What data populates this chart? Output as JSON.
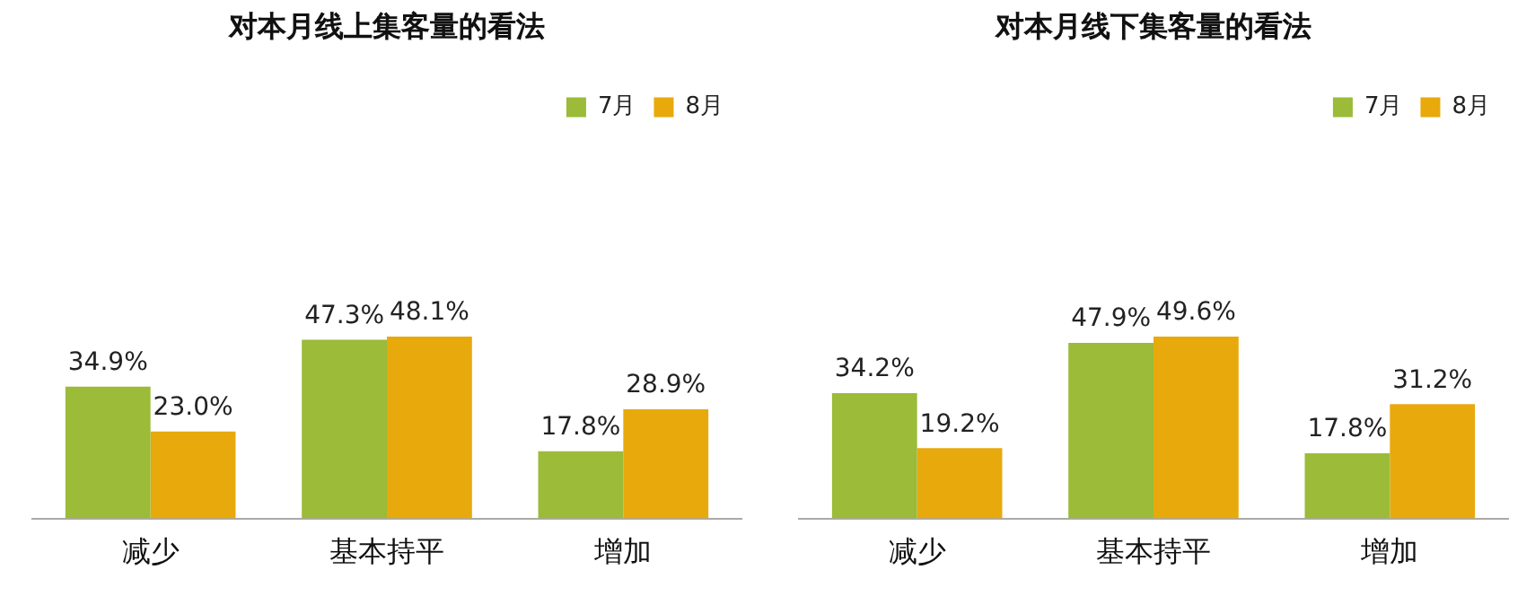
{
  "chart_data": [
    {
      "type": "bar",
      "title": "对本月线上集客量的看法",
      "categories": [
        "减少",
        "基本持平",
        "增加"
      ],
      "legend": "top right",
      "grid": false,
      "series": [
        {
          "name": "7月",
          "color": "#9bbb39",
          "values": [
            34.9,
            47.3,
            17.8
          ],
          "value_labels": [
            "34.9%",
            "47.3%",
            "17.8%"
          ]
        },
        {
          "name": "8月",
          "color": "#e8a90c",
          "values": [
            23.0,
            48.1,
            28.9
          ],
          "value_labels": [
            "23.0%",
            "48.1%",
            "28.9%"
          ]
        }
      ]
    },
    {
      "type": "bar",
      "title": "对本月线下集客量的看法",
      "categories": [
        "减少",
        "基本持平",
        "增加"
      ],
      "legend": "top right",
      "grid": false,
      "series": [
        {
          "name": "7月",
          "color": "#9bbb39",
          "values": [
            34.2,
            47.9,
            17.8
          ],
          "value_labels": [
            "34.2%",
            "47.9%",
            "17.8%"
          ]
        },
        {
          "name": "8月",
          "color": "#e8a90c",
          "values": [
            19.2,
            49.6,
            31.2
          ],
          "value_labels": [
            "19.2%",
            "49.6%",
            "31.2%"
          ]
        }
      ]
    }
  ]
}
